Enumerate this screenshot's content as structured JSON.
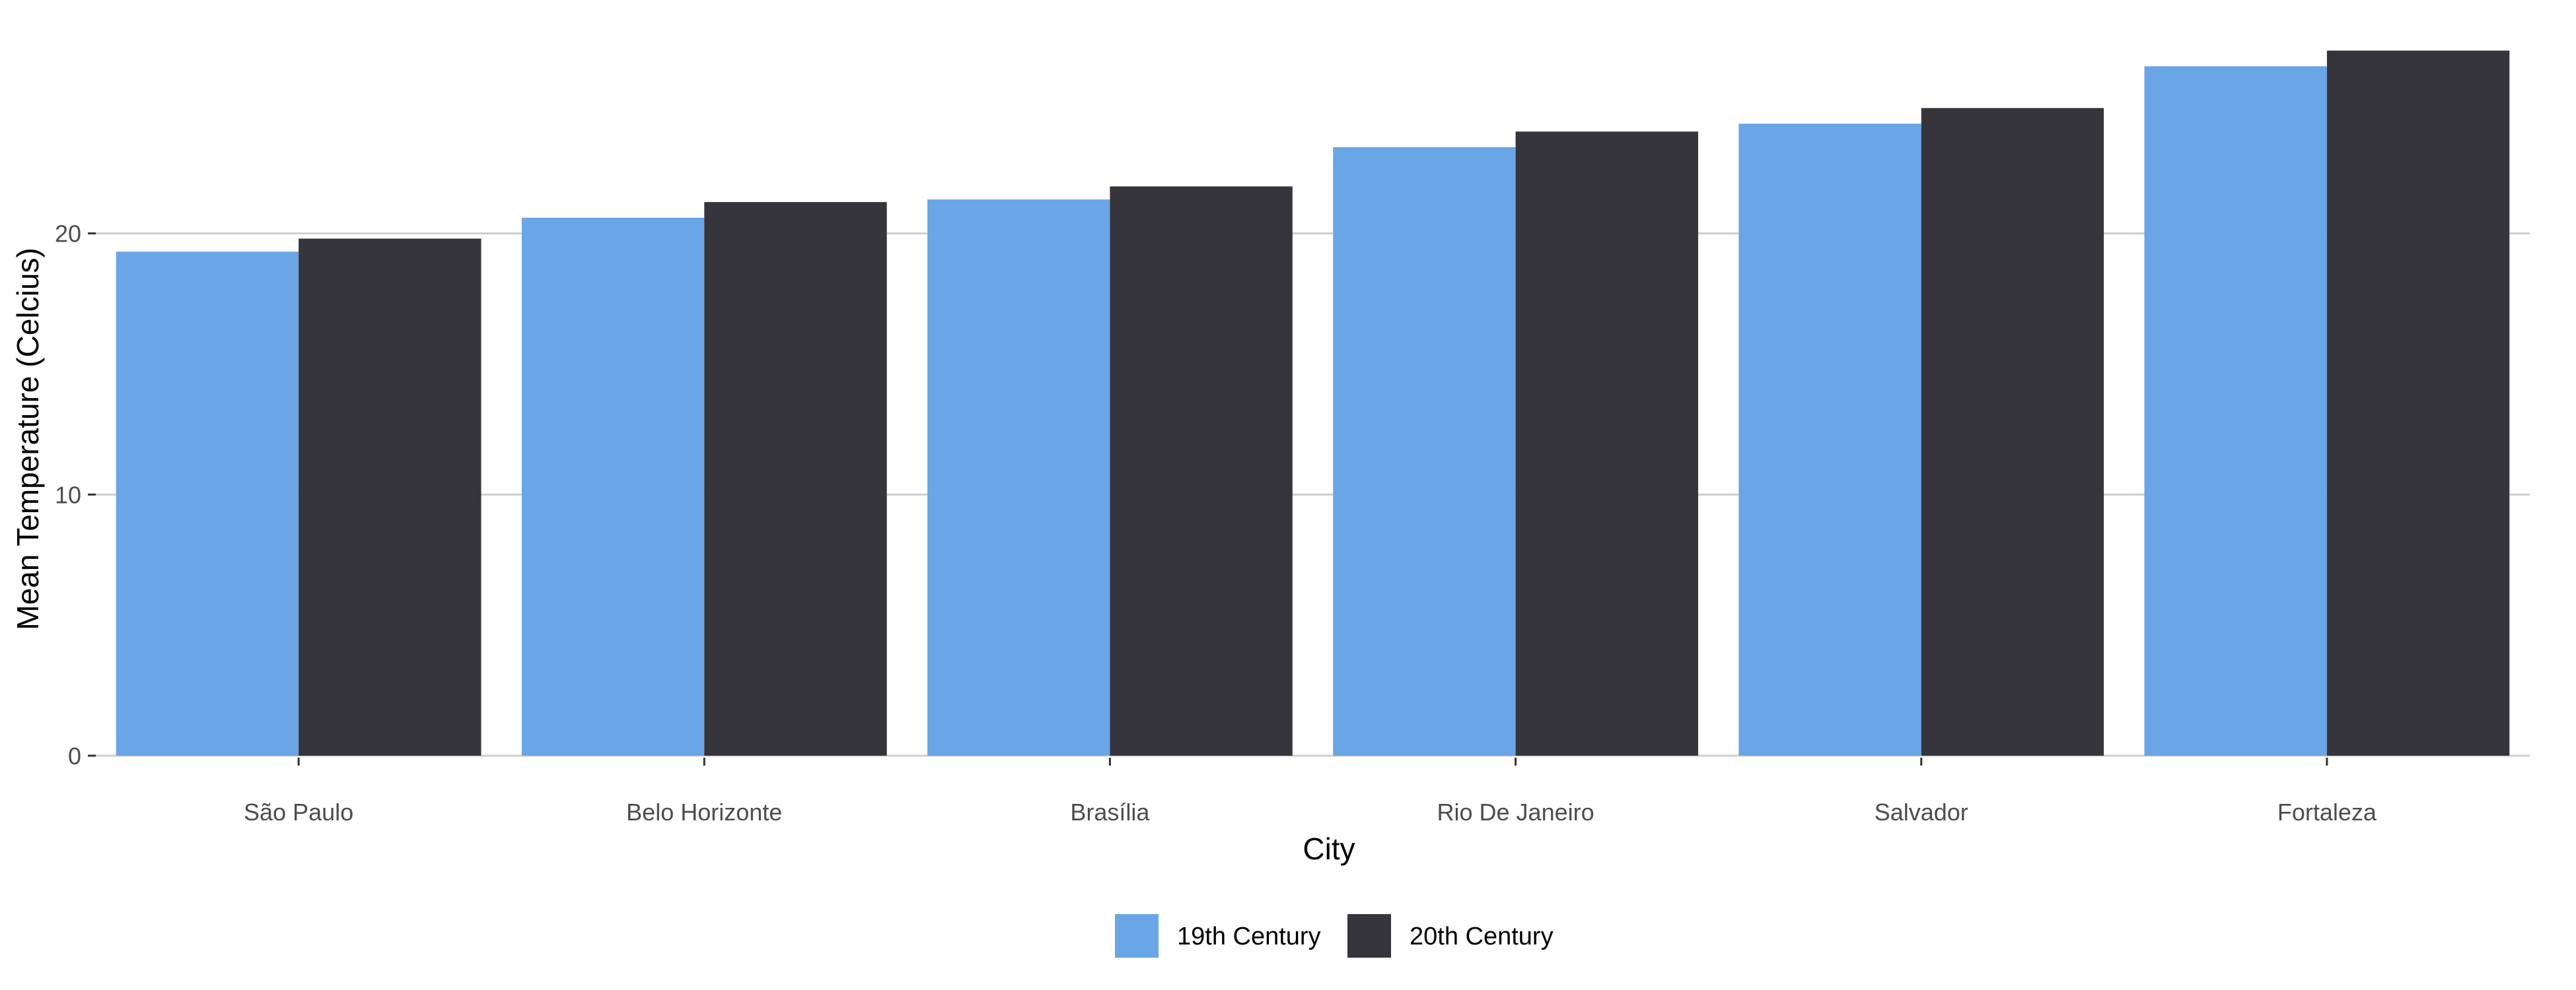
{
  "chart_data": {
    "type": "bar",
    "title": "",
    "xlabel": "City",
    "ylabel": "Mean Temperature (Celcius)",
    "categories": [
      "São Paulo",
      "Belo Horizonte",
      "Brasília",
      "Rio De Janeiro",
      "Salvador",
      "Fortaleza"
    ],
    "series": [
      {
        "name": "19th Century",
        "color": "#6aa5e5",
        "values": [
          19.3,
          20.6,
          21.3,
          23.3,
          24.2,
          26.4
        ]
      },
      {
        "name": "20th Century",
        "color": "#35353b",
        "values": [
          19.8,
          21.2,
          21.8,
          23.9,
          24.8,
          27.0
        ]
      }
    ],
    "ylim": [
      0,
      27.8
    ],
    "yticks": [
      0,
      10,
      20
    ],
    "grid": "horizontal",
    "legend_position": "bottom"
  }
}
